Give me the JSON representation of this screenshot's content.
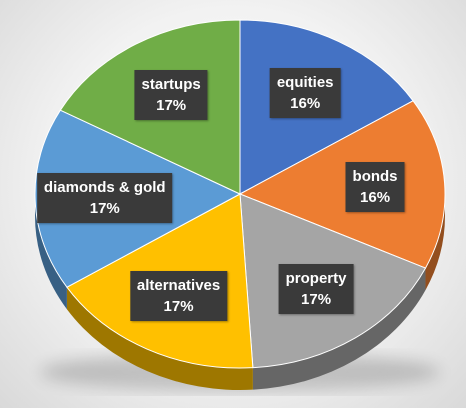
{
  "chart_data": {
    "type": "pie",
    "title": "",
    "categories": [
      "equities",
      "bonds",
      "property",
      "alternatives",
      "diamonds & gold",
      "startups"
    ],
    "values": [
      16,
      16,
      17,
      17,
      17,
      17
    ],
    "labels": [
      "16%",
      "16%",
      "17%",
      "17%",
      "17%",
      "17%"
    ],
    "colors": [
      "#4472C4",
      "#ED7D31",
      "#A5A5A5",
      "#FFC000",
      "#5B9BD5",
      "#70AD47"
    ],
    "style": "3d-tilted",
    "legend": "none"
  }
}
